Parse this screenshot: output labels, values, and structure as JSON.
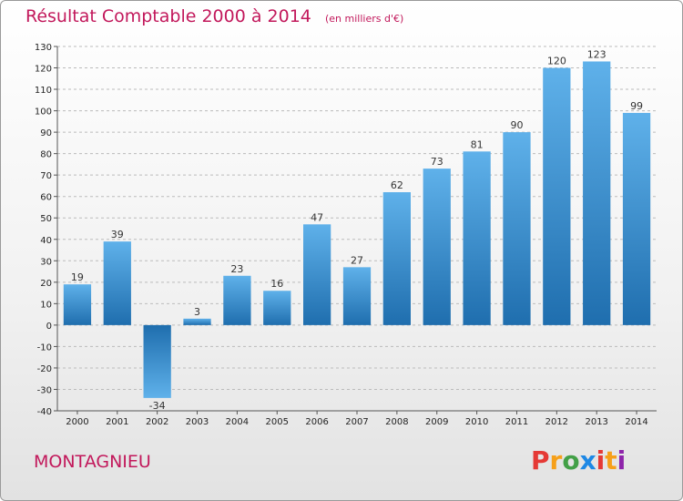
{
  "header": {
    "title": "Résultat Comptable 2000 à 2014",
    "unit": "(en milliers d'€)"
  },
  "footer": {
    "city": "MONTAGNIEU",
    "logo": "Proxiti",
    "logo_colors": [
      "#e53935",
      "#f6a01a",
      "#43a047",
      "#1e88e5",
      "#e53935",
      "#f6a01a",
      "#8e24aa"
    ]
  },
  "colors": {
    "title": "#c2185b",
    "bar_light": "#5fb1ea",
    "bar_dark": "#1f6eae",
    "grid": "#bbbbbb"
  },
  "chart_data": {
    "type": "bar",
    "title": "Résultat Comptable 2000 à 2014",
    "subtitle": "(en milliers d'€)",
    "categories": [
      "2000",
      "2001",
      "2002",
      "2003",
      "2004",
      "2005",
      "2006",
      "2007",
      "2008",
      "2009",
      "2010",
      "2011",
      "2012",
      "2013",
      "2014"
    ],
    "values": [
      19,
      39,
      -34,
      3,
      23,
      16,
      47,
      27,
      62,
      73,
      81,
      90,
      120,
      123,
      99
    ],
    "ylim": [
      -40,
      130
    ],
    "yticks": [
      -40,
      -30,
      -20,
      -10,
      0,
      10,
      20,
      30,
      40,
      50,
      60,
      70,
      80,
      90,
      100,
      110,
      120,
      130
    ],
    "grid": true,
    "xlabel": "",
    "ylabel": ""
  }
}
